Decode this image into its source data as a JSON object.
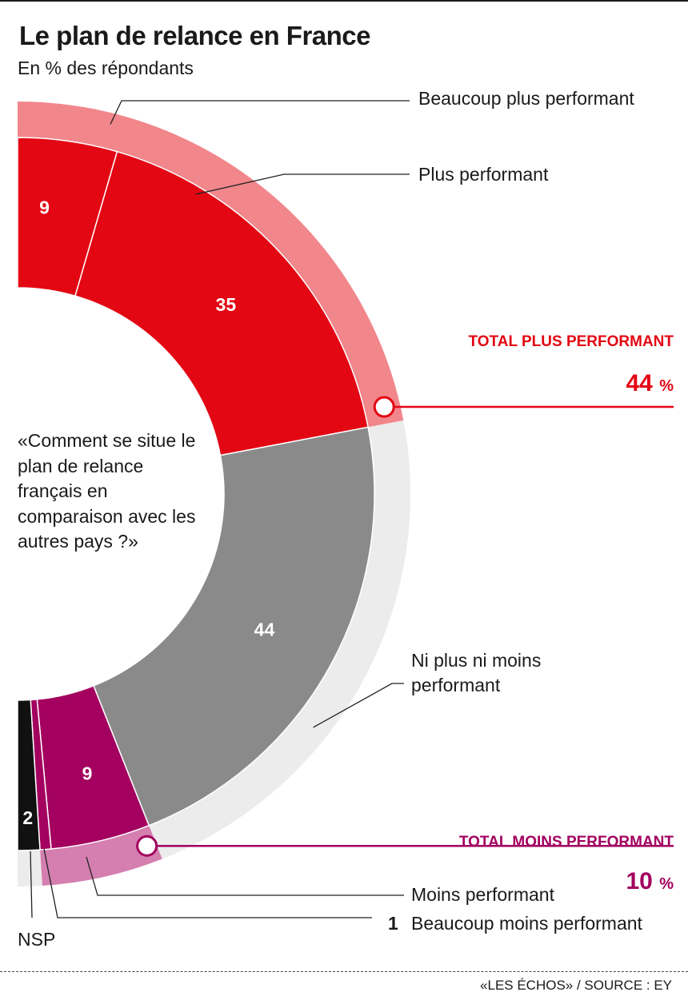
{
  "title": "Le plan de relance en France",
  "subtitle": "En % des répondants",
  "question": "«Comment se situe le plan de relance français en comparaison avec les autres pays ?»",
  "source": "«LES ÉCHOS» / SOURCE : EY",
  "chart_data": {
    "type": "pie",
    "variant": "half-donut",
    "title": "Le plan de relance en France",
    "subtitle": "En % des répondants",
    "categories": [
      "Beaucoup plus performant",
      "Plus performant",
      "Ni plus ni moins performant",
      "Moins performant",
      "Beaucoup moins performant",
      "NSP"
    ],
    "values": [
      9,
      35,
      44,
      9,
      1,
      2
    ],
    "value_labels": [
      "9",
      "35",
      "44",
      "9",
      "1",
      "2"
    ],
    "colors": [
      "#e30613",
      "#e30613",
      "#8a8a8a",
      "#a3005f",
      "#a3005f",
      "#111111"
    ],
    "totals": [
      {
        "label": "TOTAL PLUS PERFORMANT",
        "value": 44,
        "value_label": "44",
        "unit": "%",
        "color": "#e30613",
        "ring_color": "#f1868b"
      },
      {
        "label": "TOTAL MOINS PERFORMANT",
        "value": 10,
        "value_label": "10",
        "unit": "%",
        "color": "#a3005f",
        "ring_color": "#d47fb0"
      },
      {
        "value": 46,
        "ring_color": "#ececec"
      }
    ]
  }
}
